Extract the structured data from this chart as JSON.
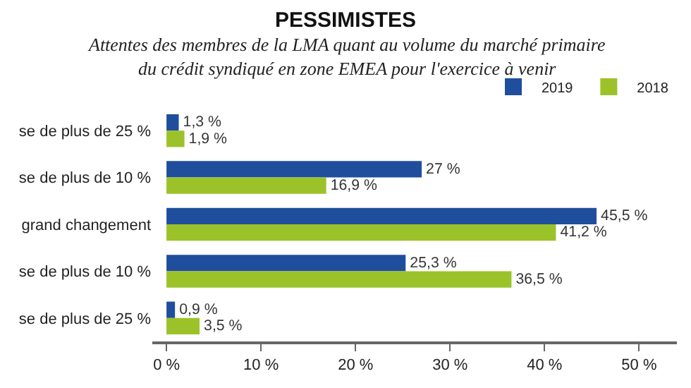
{
  "chart_data": {
    "type": "bar",
    "orientation": "horizontal",
    "title": "PESSIMISTES",
    "subtitle": "Attentes des membres de la LMA quant au volume du marché primaire du crédit syndiqué en zone EMEA pour l'exercice à venir",
    "categories": [
      "se de plus de 25 %",
      "se de plus de 10 %",
      "grand changement",
      "se de plus de 10 %",
      "se de plus de 25 %"
    ],
    "series": [
      {
        "name": "2019",
        "color": "#1f4e9c",
        "values": [
          1.3,
          27,
          45.5,
          25.3,
          0.9
        ],
        "value_labels": [
          "1,3 %",
          "27 %",
          "45,5 %",
          "25,3 %",
          "0,9 %"
        ]
      },
      {
        "name": "2018",
        "color": "#9cc22a",
        "values": [
          1.9,
          16.9,
          41.2,
          36.5,
          3.5
        ],
        "value_labels": [
          "1,9 %",
          "16,9 %",
          "41,2 %",
          "36,5 %",
          "3,5 %"
        ]
      }
    ],
    "xlim": [
      -1.5,
      54
    ],
    "xticks": [
      {
        "value": 0,
        "label": "0 %"
      },
      {
        "value": 10,
        "label": "10 %"
      },
      {
        "value": 20,
        "label": "20 %"
      },
      {
        "value": 30,
        "label": "30 %"
      },
      {
        "value": 40,
        "label": "40 %"
      },
      {
        "value": 50,
        "label": "50 %"
      }
    ],
    "legend": "top right"
  }
}
